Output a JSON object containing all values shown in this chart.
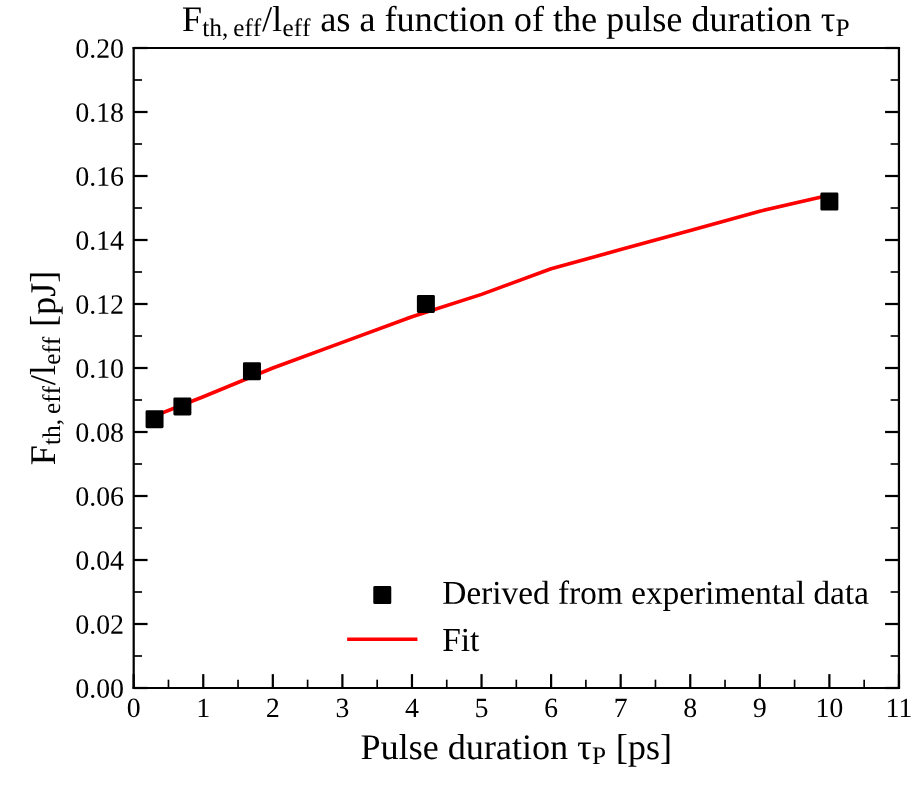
{
  "chart_data": {
    "type": "scatter",
    "title": "F$_{th,eff}$/l$_{eff}$ as a function of the pulse duration τ$_{P}$",
    "xlabel": "Pulse duration τ$_{P}$ [ps]",
    "ylabel": "F$_{th,eff}$/l$_{eff}$ [pJ]",
    "series": [
      {
        "name": "Derived from experimental data",
        "color": "#000000",
        "marker": "square",
        "x": [
          0.3,
          0.7,
          1.7,
          4.2,
          10
        ],
        "values": [
          0.084,
          0.088,
          0.099,
          0.12,
          0.152
        ]
      },
      {
        "name": "Fit",
        "type": "line",
        "color": "#ff0000",
        "marker": "none",
        "line_style": "solid",
        "x": [
          0.3,
          1,
          2,
          3,
          4,
          5,
          6,
          7,
          8,
          9,
          10
        ],
        "values": [
          0.085,
          0.091,
          0.1,
          0.108,
          0.116,
          0.123,
          0.131,
          0.137,
          0.143,
          0.149,
          0.154
        ]
      }
    ],
    "xlim": [
      0,
      11
    ],
    "xticks": [
      0,
      1,
      2,
      3,
      4,
      5,
      6,
      7,
      8,
      9,
      10,
      11
    ],
    "ylim": [
      0,
      0.2
    ],
    "yticks": [
      {
        "value": 0,
        "label": "0.00"
      },
      {
        "value": 0.02,
        "label": "0.02"
      },
      {
        "value": 0.04,
        "label": "0.04"
      },
      {
        "value": 0.06,
        "label": "0.06"
      },
      {
        "value": 0.08,
        "label": "0.08"
      },
      {
        "value": 0.1,
        "label": "0.10"
      },
      {
        "value": 0.12,
        "label": "0.12"
      },
      {
        "value": 0.14,
        "label": "0.14"
      },
      {
        "value": 0.16,
        "label": "0.16"
      },
      {
        "value": 0.18,
        "label": "0.18"
      },
      {
        "value": 0.2,
        "label": "0.20"
      }
    ],
    "grid": false,
    "legend": "bottom right"
  }
}
